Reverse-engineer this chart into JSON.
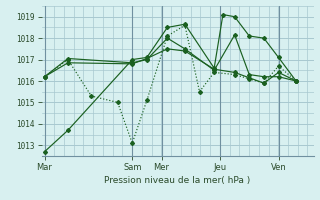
{
  "xlabel": "Pression niveau de la mer( hPa )",
  "bg_color": "#cce8e8",
  "plot_bg": "#d8f0f0",
  "grid_color": "#a8c8d0",
  "line_color": "#1a6020",
  "ylim": [
    1012.5,
    1019.5
  ],
  "yticks": [
    1013,
    1014,
    1015,
    1016,
    1017,
    1018,
    1019
  ],
  "day_labels": [
    "Mar",
    "Sam",
    "Mer",
    "Jeu",
    "Ven"
  ],
  "day_positions": [
    0,
    3,
    4,
    6,
    8
  ],
  "xlim": [
    -0.1,
    9.2
  ],
  "series": [
    {
      "x": [
        0.0,
        0.8,
        1.6,
        2.5,
        3.0,
        3.5,
        4.2,
        4.8,
        5.3,
        5.8,
        6.5,
        7.0,
        7.5,
        8.0,
        8.6
      ],
      "y": [
        1016.2,
        1017.0,
        1015.3,
        1015.0,
        1013.1,
        1015.1,
        1018.1,
        1018.6,
        1015.5,
        1016.4,
        1016.3,
        1016.1,
        1015.9,
        1016.7,
        1016.0
      ],
      "style": ":"
    },
    {
      "x": [
        0.0,
        0.8,
        3.0,
        3.5,
        4.2,
        4.8,
        5.8,
        6.1,
        6.5,
        7.0,
        7.5,
        8.0,
        8.6
      ],
      "y": [
        1012.7,
        1013.7,
        1017.0,
        1017.1,
        1018.5,
        1018.65,
        1016.6,
        1019.1,
        1019.0,
        1018.1,
        1018.0,
        1017.1,
        1016.0
      ],
      "style": "-"
    },
    {
      "x": [
        0.0,
        0.8,
        3.0,
        3.5,
        4.2,
        4.8,
        5.8,
        6.5,
        7.0,
        7.5,
        8.0,
        8.6
      ],
      "y": [
        1016.2,
        1017.05,
        1016.85,
        1017.0,
        1018.0,
        1017.5,
        1016.5,
        1018.15,
        1016.3,
        1016.2,
        1016.2,
        1016.0
      ],
      "style": "-"
    },
    {
      "x": [
        0.0,
        0.8,
        3.0,
        3.5,
        4.2,
        4.8,
        5.8,
        6.5,
        7.0,
        7.5,
        8.0,
        8.6
      ],
      "y": [
        1016.2,
        1016.85,
        1016.8,
        1017.05,
        1017.5,
        1017.4,
        1016.55,
        1016.4,
        1016.15,
        1015.9,
        1016.4,
        1016.0
      ],
      "style": "-"
    }
  ]
}
